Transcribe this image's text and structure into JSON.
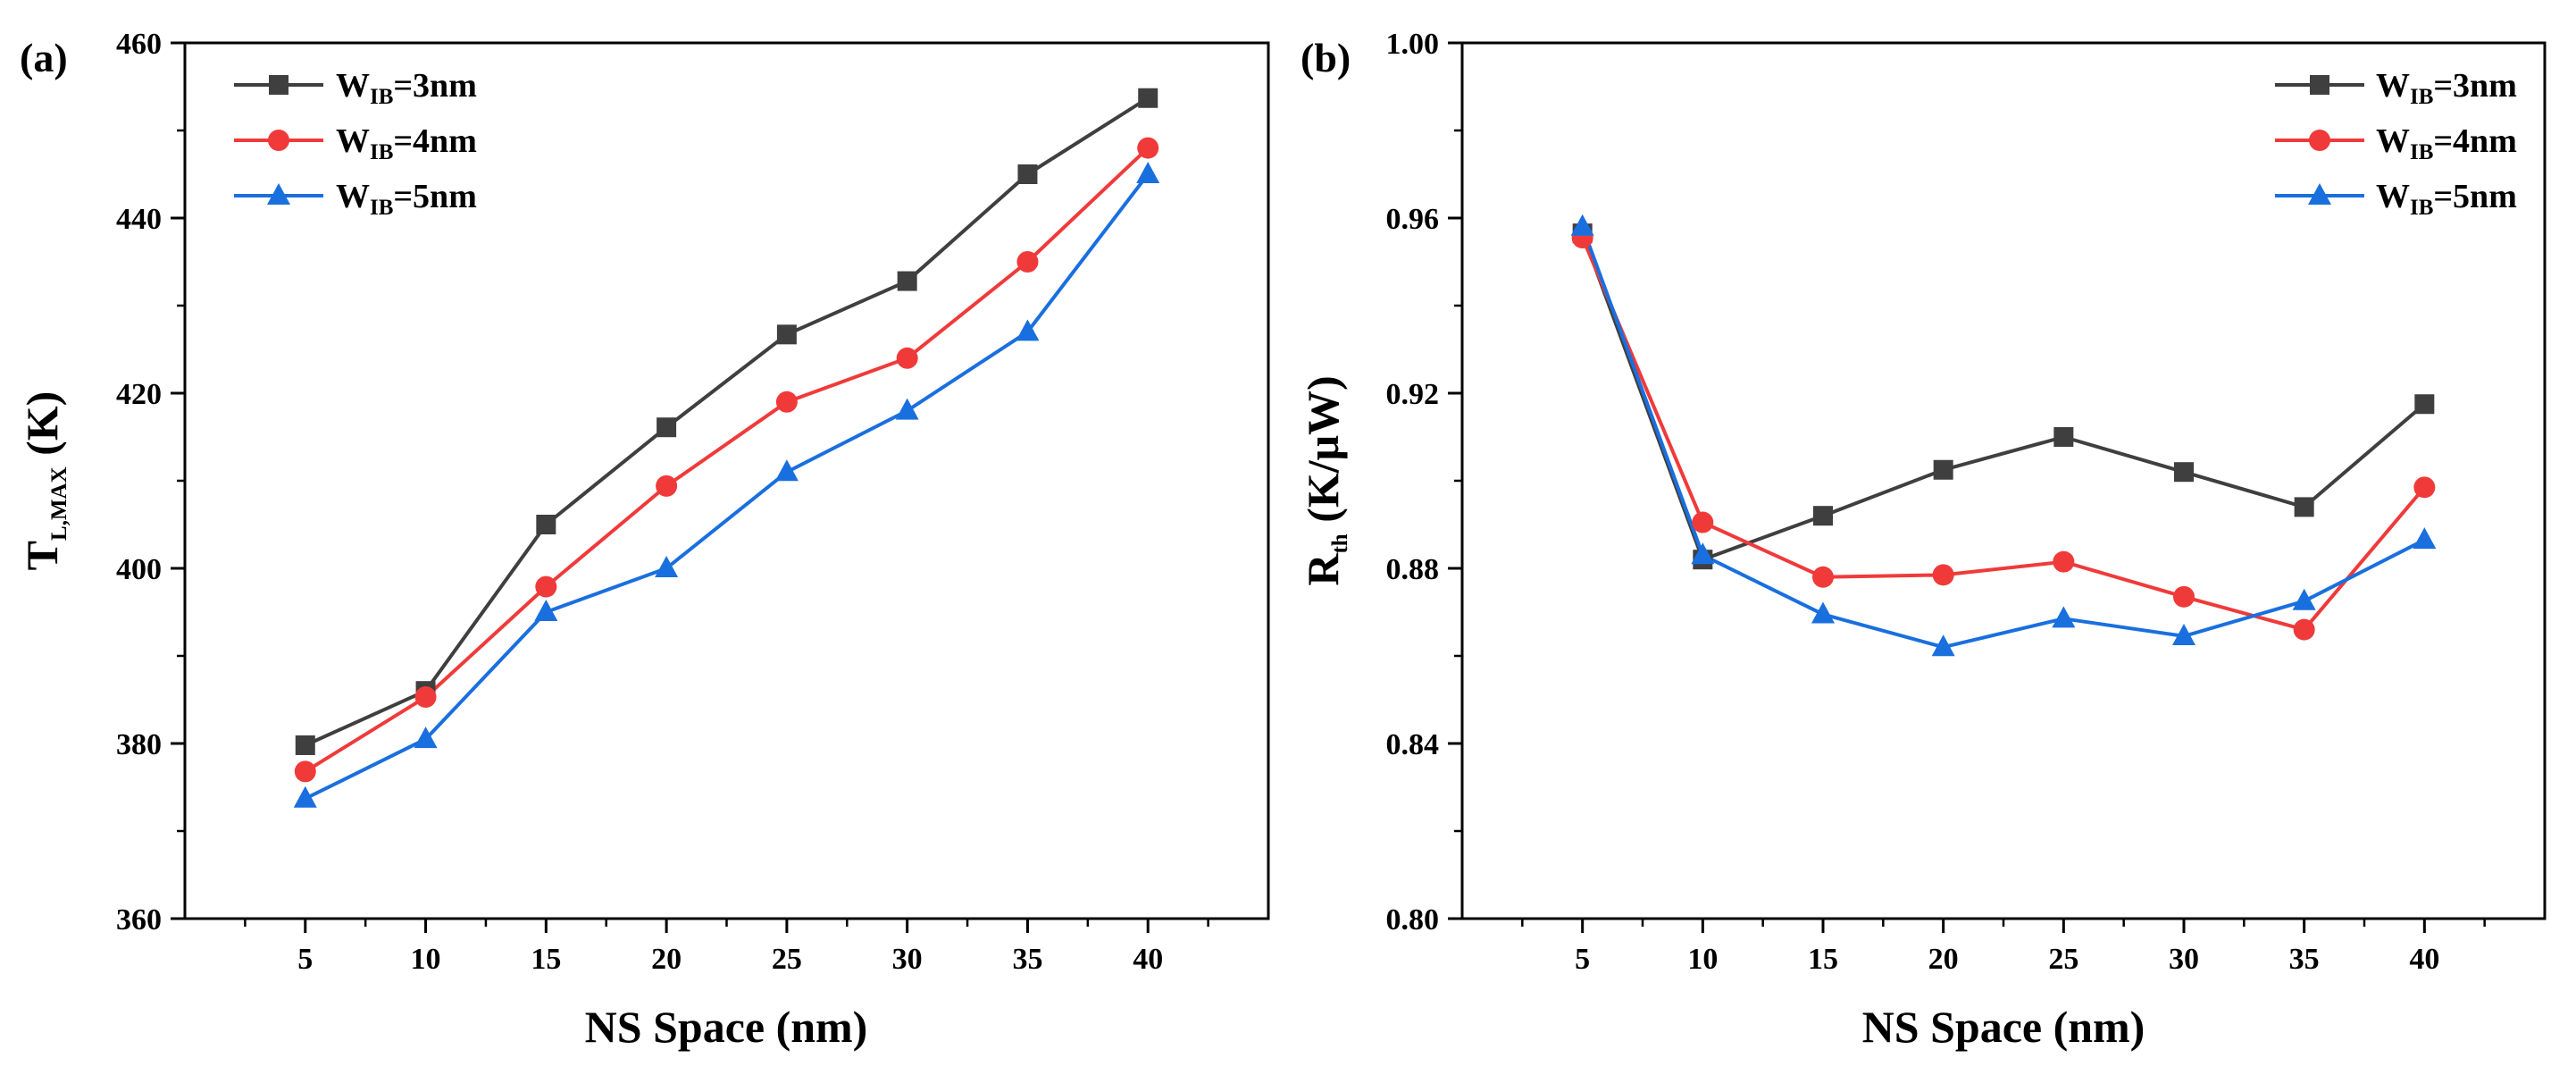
{
  "chart_data": [
    {
      "type": "line",
      "panel_label": "(a)",
      "x": [
        5,
        10,
        15,
        20,
        25,
        30,
        35,
        40
      ],
      "xlabel": "NS Space (nm)",
      "ylabel": {
        "main": "T",
        "sub": "L,MAX",
        "unit": " (K)"
      },
      "xticks": [
        "5",
        "10",
        "15",
        "20",
        "25",
        "30",
        "35",
        "40"
      ],
      "yticks": [
        "360",
        "380",
        "400",
        "420",
        "440",
        "460"
      ],
      "xlim": [
        0,
        45
      ],
      "ylim": [
        360,
        460
      ],
      "grid": false,
      "legend_position": "top-left",
      "series": [
        {
          "name": {
            "main": "W",
            "sub": "IB",
            "rest": "=3nm"
          },
          "color": "#3f3f3f",
          "marker": "square",
          "values": [
            379.8,
            386.0,
            405.0,
            416.1,
            426.7,
            432.8,
            445.0,
            453.7
          ]
        },
        {
          "name": {
            "main": "W",
            "sub": "IB",
            "rest": "=4nm"
          },
          "color": "#f03a3a",
          "marker": "circle",
          "values": [
            376.8,
            385.3,
            397.9,
            409.4,
            419.0,
            424.0,
            435.0,
            448.0
          ]
        },
        {
          "name": {
            "main": "W",
            "sub": "IB",
            "rest": "=5nm"
          },
          "color": "#1a6fdf",
          "marker": "triangle",
          "values": [
            373.7,
            380.5,
            395.0,
            400.0,
            411.0,
            418.0,
            427.0,
            445.0
          ]
        }
      ]
    },
    {
      "type": "line",
      "panel_label": "(b)",
      "x": [
        5,
        10,
        15,
        20,
        25,
        30,
        35,
        40
      ],
      "xlabel": "NS Space (nm)",
      "ylabel": {
        "main": "R",
        "sub": "th",
        "unit": " (K/μW)"
      },
      "xticks": [
        "5",
        "10",
        "15",
        "20",
        "25",
        "30",
        "35",
        "40"
      ],
      "yticks": [
        "0.80",
        "0.84",
        "0.88",
        "0.92",
        "0.96",
        "1.00"
      ],
      "xlim": [
        0,
        45
      ],
      "ylim": [
        0.8,
        1.0
      ],
      "grid": false,
      "legend_position": "top-right",
      "series": [
        {
          "name": {
            "main": "W",
            "sub": "IB",
            "rest": "=3nm"
          },
          "color": "#3f3f3f",
          "marker": "square",
          "values": [
            0.9565,
            0.882,
            0.892,
            0.9025,
            0.91,
            0.902,
            0.894,
            0.9175
          ]
        },
        {
          "name": {
            "main": "W",
            "sub": "IB",
            "rest": "=4nm"
          },
          "color": "#f03a3a",
          "marker": "circle",
          "values": [
            0.9555,
            0.8905,
            0.878,
            0.8785,
            0.8815,
            0.8735,
            0.866,
            0.8985
          ]
        },
        {
          "name": {
            "main": "W",
            "sub": "IB",
            "rest": "=5nm"
          },
          "color": "#1a6fdf",
          "marker": "triangle",
          "values": [
            0.958,
            0.883,
            0.8695,
            0.862,
            0.8685,
            0.8645,
            0.8725,
            0.8865
          ]
        }
      ]
    }
  ]
}
